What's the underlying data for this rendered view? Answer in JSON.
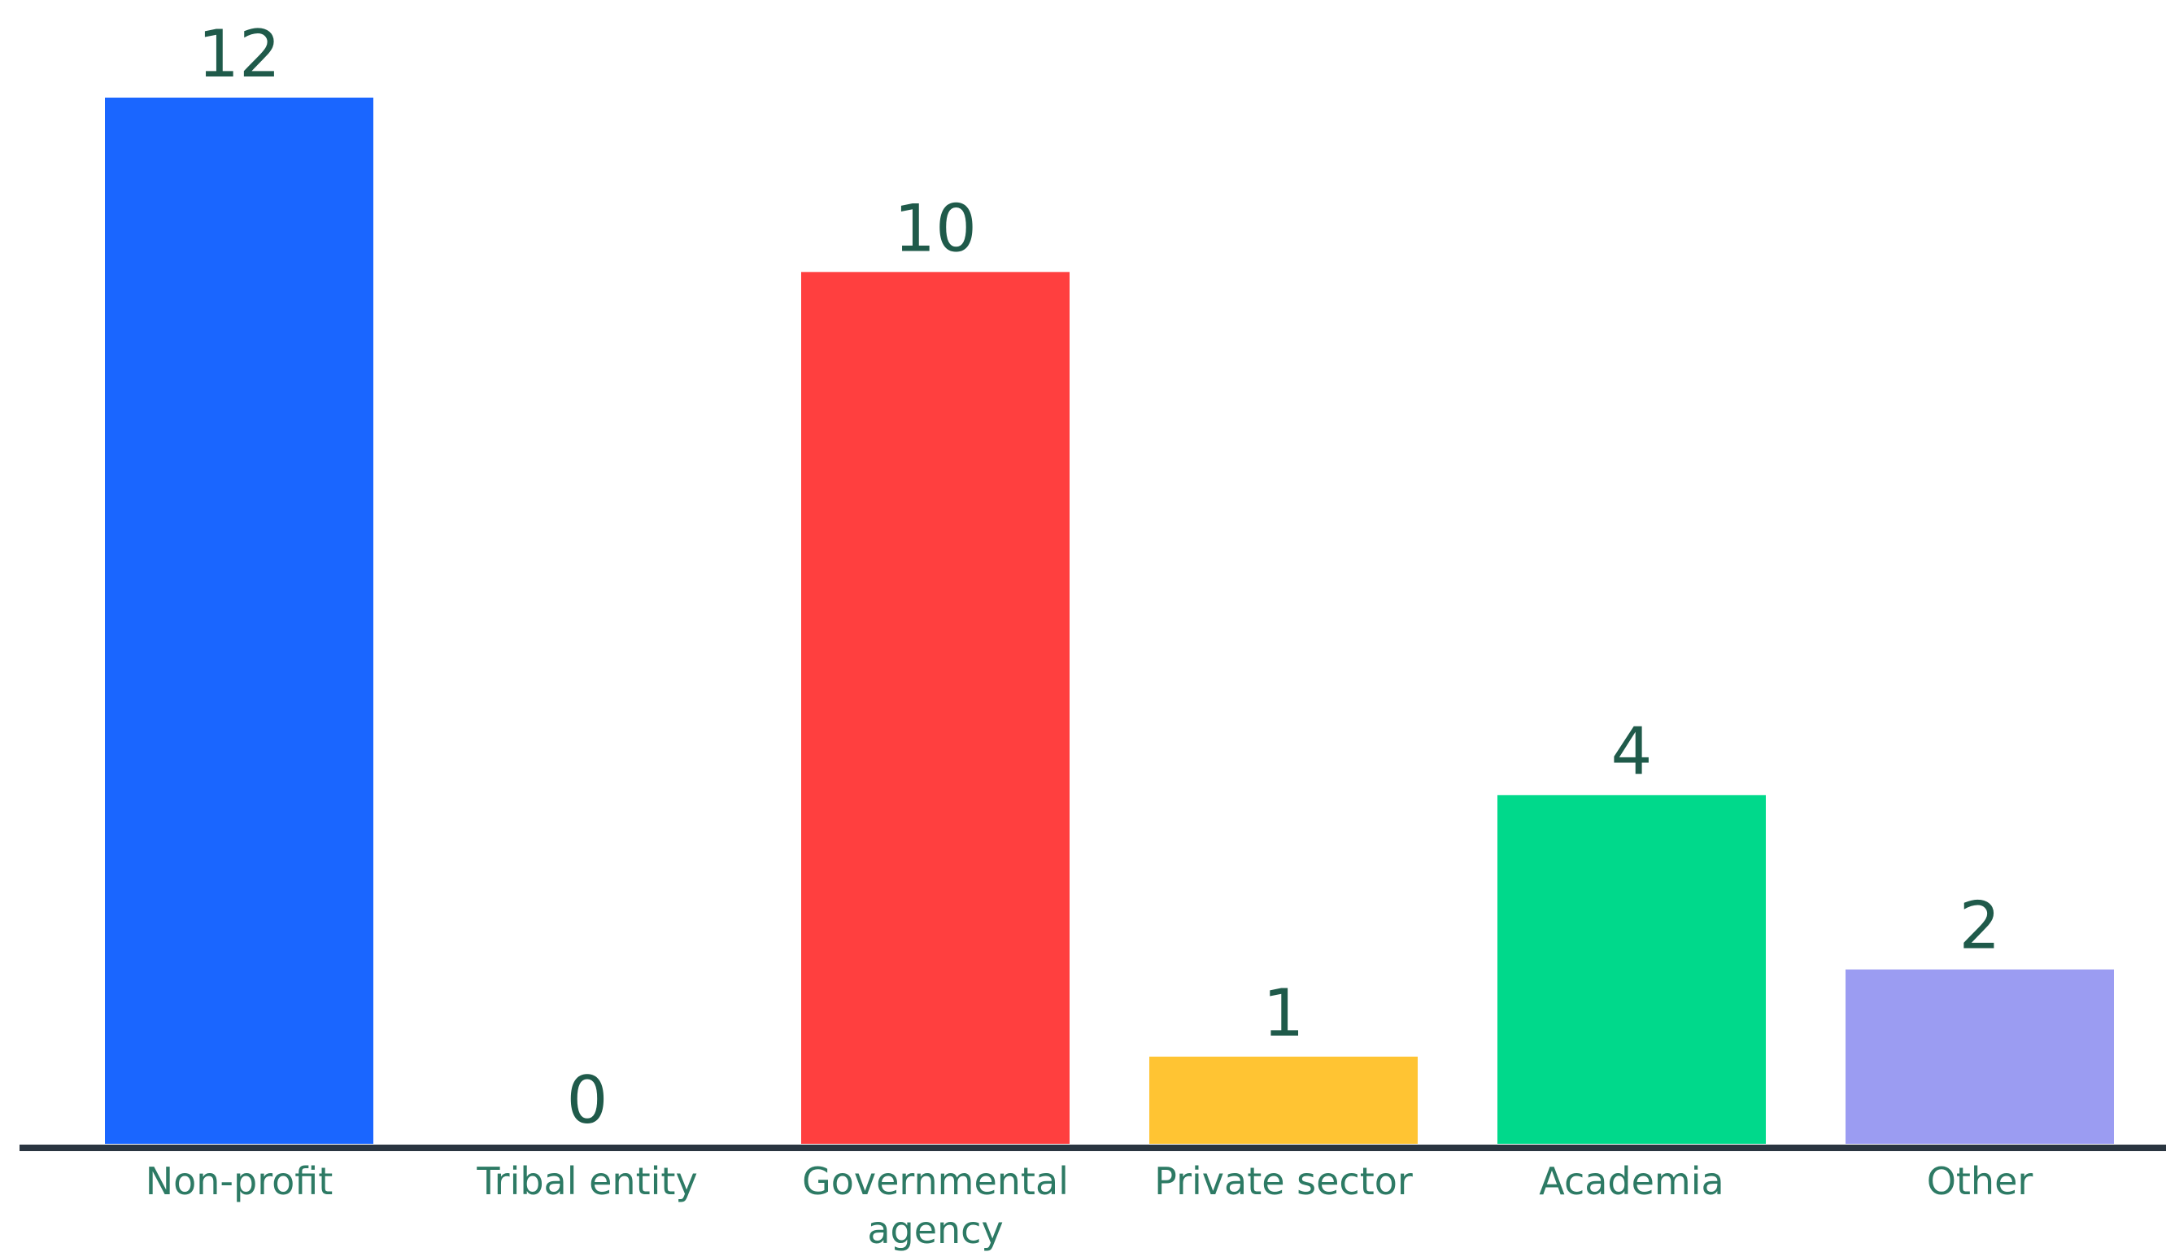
{
  "chart_data": {
    "type": "bar",
    "categories": [
      "Non-profit",
      "Tribal entity",
      "Governmental agency",
      "Private sector",
      "Academia",
      "Other"
    ],
    "category_lines": [
      [
        "Non-profit"
      ],
      [
        "Tribal entity"
      ],
      [
        "Governmental",
        "agency"
      ],
      [
        "Private sector"
      ],
      [
        "Academia"
      ],
      [
        "Other"
      ]
    ],
    "values": [
      12,
      0,
      10,
      1,
      4,
      2
    ],
    "colors": [
      "#1a66ff",
      "#ff3f3f",
      "#ff3f3f",
      "#ffc433",
      "#00d98b",
      "#9b9cf2"
    ],
    "ylim": [
      0,
      12
    ],
    "grid": false,
    "data_labels": true,
    "title": "",
    "xlabel": "",
    "ylabel": ""
  }
}
